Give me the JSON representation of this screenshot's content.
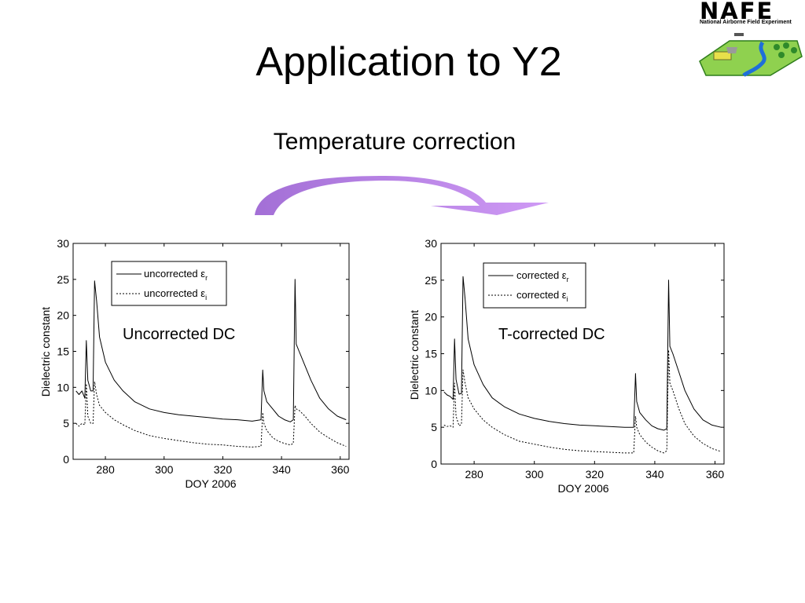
{
  "slide": {
    "title": "Application to Y2",
    "subtitle": "Temperature correction"
  },
  "logo": {
    "name": "NAFE",
    "tagline": "National Airborne Field Experiment"
  },
  "colors": {
    "arrow": "#b57ee3",
    "line": "#000000"
  },
  "chart_data": [
    {
      "type": "line",
      "annotation": "Uncorrected DC",
      "xlabel": "DOY 2006",
      "ylabel": "Dielectric constant",
      "xlim": [
        269,
        363
      ],
      "ylim": [
        0,
        30
      ],
      "xticks": [
        280,
        300,
        320,
        340,
        360
      ],
      "yticks": [
        0,
        5,
        10,
        15,
        20,
        25,
        30
      ],
      "legend_position": "top-left",
      "grid": false,
      "series": [
        {
          "name": "uncorrected ε",
          "name_sub": "r",
          "style": "solid",
          "x": [
            270,
            271,
            272,
            273,
            273.5,
            274,
            275,
            275.8,
            276.3,
            277,
            278,
            280,
            283,
            286,
            290,
            295,
            300,
            305,
            310,
            315,
            320,
            325,
            330,
            333,
            333.6,
            334,
            335,
            337,
            339,
            341,
            343,
            344,
            344.6,
            345,
            346,
            348,
            350,
            353,
            356,
            359,
            362
          ],
          "y": [
            9.5,
            9,
            9.5,
            8.5,
            16.5,
            11,
            9.5,
            9.5,
            24.8,
            22,
            17,
            13.5,
            11,
            9.5,
            8,
            7,
            6.5,
            6.2,
            6,
            5.8,
            5.6,
            5.5,
            5.3,
            5.5,
            12.4,
            9.5,
            8,
            7,
            6,
            5.5,
            5.2,
            5.5,
            25,
            16,
            15,
            13,
            11,
            8.5,
            7,
            6,
            5.5
          ]
        },
        {
          "name": "uncorrected ε",
          "name_sub": "i",
          "style": "dashed",
          "x": [
            270,
            271,
            272,
            273,
            273.5,
            274,
            275,
            275.8,
            276.3,
            277,
            278,
            280,
            283,
            286,
            290,
            295,
            300,
            305,
            310,
            315,
            320,
            325,
            330,
            333,
            333.6,
            334,
            335,
            337,
            339,
            341,
            343,
            344,
            344.6,
            345,
            346,
            348,
            350,
            353,
            356,
            359,
            362
          ],
          "y": [
            5,
            4.6,
            5,
            4.8,
            10.5,
            6,
            5,
            5,
            10.8,
            9,
            7.5,
            6.5,
            5.5,
            4.8,
            4,
            3.3,
            2.9,
            2.6,
            2.3,
            2.1,
            2,
            1.8,
            1.7,
            1.8,
            6.5,
            5,
            4,
            3,
            2.5,
            2.2,
            2,
            2.2,
            7.5,
            7,
            6.8,
            6,
            5,
            3.8,
            3,
            2.3,
            1.8
          ]
        }
      ]
    },
    {
      "type": "line",
      "annotation": "T-corrected DC",
      "xlabel": "DOY 2006",
      "ylabel": "Dielectric constant",
      "xlim": [
        269,
        363
      ],
      "ylim": [
        0,
        30
      ],
      "xticks": [
        280,
        300,
        320,
        340,
        360
      ],
      "yticks": [
        0,
        5,
        10,
        15,
        20,
        25,
        30
      ],
      "legend_position": "top-left",
      "grid": false,
      "series": [
        {
          "name": "corrected ε",
          "name_sub": "r",
          "style": "solid",
          "x": [
            270,
            271,
            272,
            273,
            273.5,
            274,
            275,
            275.8,
            276.3,
            277,
            278,
            280,
            283,
            286,
            290,
            295,
            300,
            305,
            310,
            315,
            320,
            325,
            330,
            333,
            333.6,
            334,
            335,
            337,
            339,
            341,
            343,
            344,
            344.6,
            345,
            346,
            348,
            350,
            353,
            356,
            359,
            362
          ],
          "y": [
            9.8,
            9.4,
            9.2,
            8.8,
            17,
            11.5,
            9.5,
            9.6,
            25.5,
            22.5,
            17,
            13.5,
            10.8,
            9,
            7.8,
            6.8,
            6.2,
            5.8,
            5.5,
            5.3,
            5.2,
            5.1,
            5,
            5,
            12.3,
            8.5,
            7,
            6,
            5.2,
            4.8,
            4.6,
            4.8,
            25,
            16,
            15,
            12.5,
            10,
            7.5,
            6,
            5.3,
            5
          ]
        },
        {
          "name": "corrected ε",
          "name_sub": "i",
          "style": "dashed",
          "x": [
            270,
            271,
            272,
            273,
            273.5,
            274,
            275,
            275.8,
            276.3,
            277,
            278,
            280,
            283,
            286,
            290,
            295,
            300,
            305,
            310,
            315,
            320,
            325,
            330,
            333,
            333.6,
            334,
            335,
            337,
            339,
            341,
            343,
            344,
            344.6,
            345,
            346,
            348,
            350,
            353,
            356,
            359,
            362
          ],
          "y": [
            5.3,
            5.1,
            5.2,
            5,
            11,
            6.5,
            5.2,
            5.4,
            12.8,
            11,
            9,
            7.5,
            6,
            5,
            4,
            3.1,
            2.7,
            2.3,
            2,
            1.8,
            1.7,
            1.6,
            1.5,
            1.5,
            6.5,
            5,
            4,
            3,
            2.3,
            1.8,
            1.5,
            1.8,
            15.5,
            11,
            10,
            7.5,
            5.5,
            3.8,
            2.8,
            2.1,
            1.7
          ]
        }
      ]
    }
  ]
}
